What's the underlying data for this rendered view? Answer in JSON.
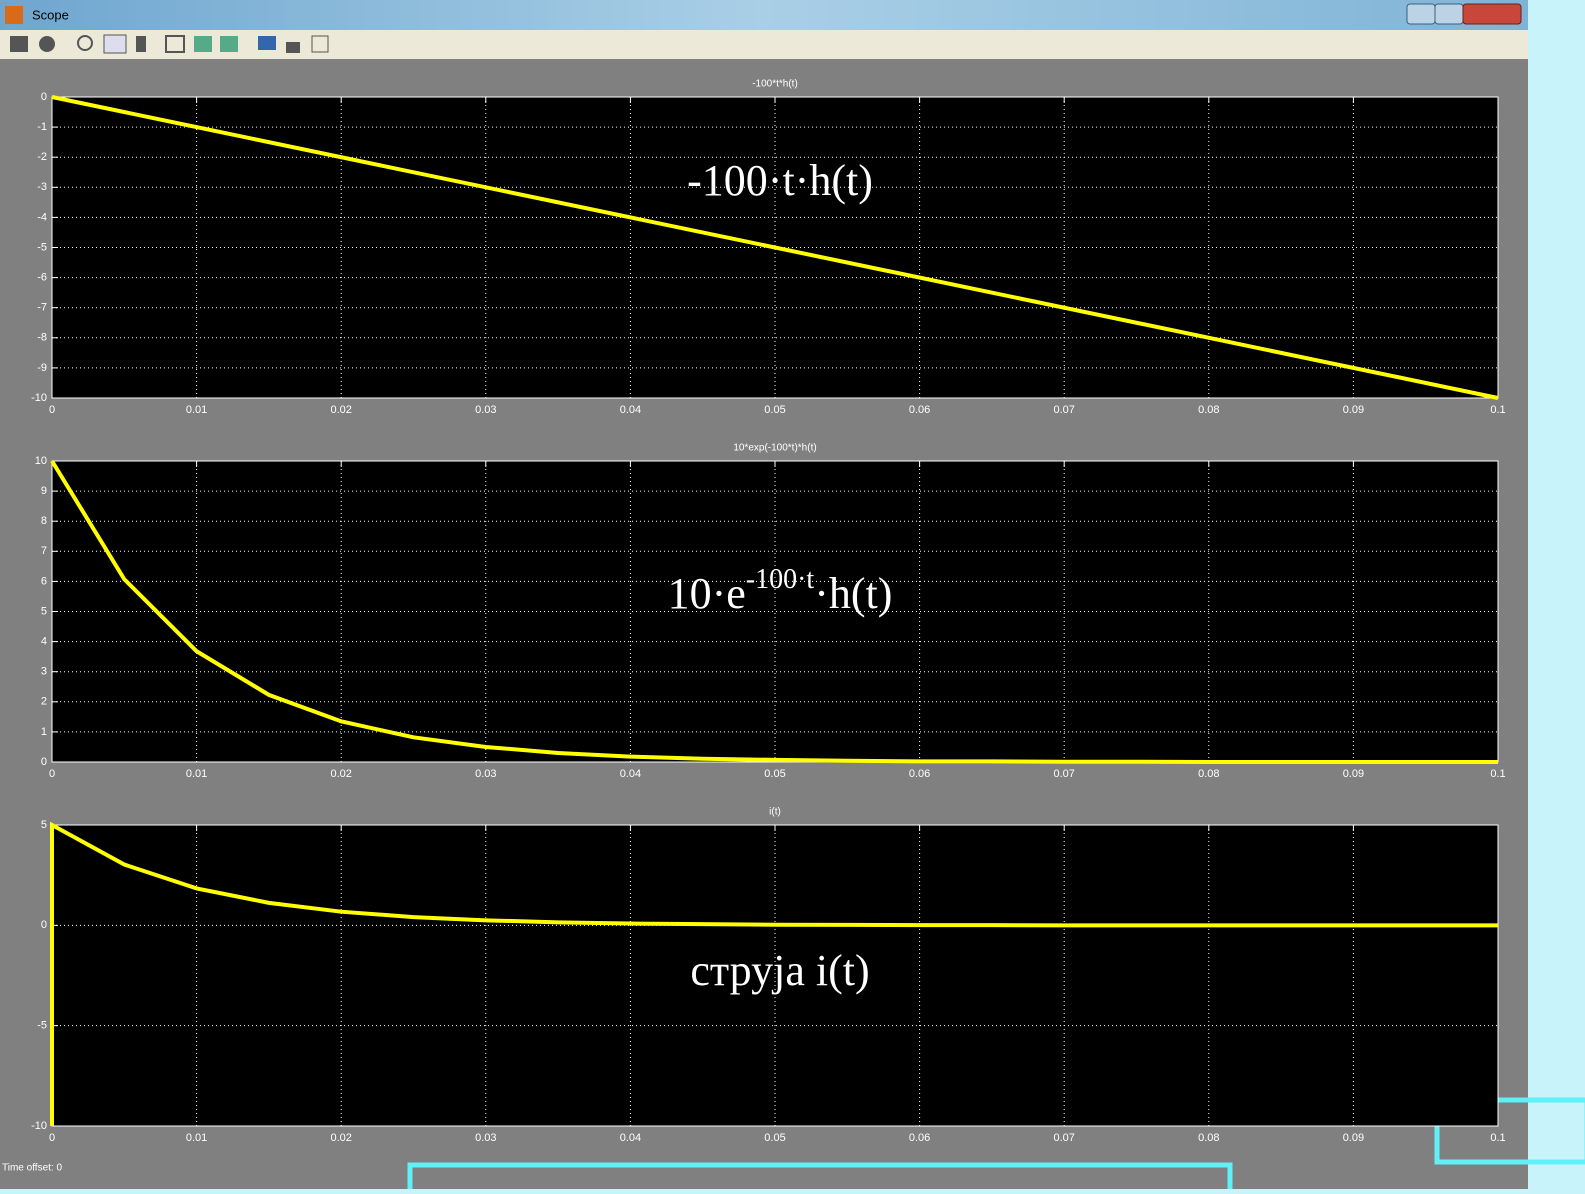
{
  "window": {
    "title": "Scope",
    "status": "Time offset:  0"
  },
  "chart_data": [
    {
      "type": "line",
      "title": "-100*t*h(t)",
      "annotation": [
        "-100·t·h(t)"
      ],
      "color": "#ffff00",
      "grid": true,
      "x": [
        0,
        0.1
      ],
      "values": [
        0,
        -10
      ],
      "xlim": [
        0,
        0.1
      ],
      "ylim": [
        -10,
        0
      ],
      "xticks": [
        0,
        0.01,
        0.02,
        0.03,
        0.04,
        0.05,
        0.06,
        0.07,
        0.08,
        0.09,
        0.1
      ],
      "yticks": [
        0,
        -1,
        -2,
        -3,
        -4,
        -5,
        -6,
        -7,
        -8,
        -9,
        -10
      ]
    },
    {
      "type": "line",
      "title": "10*exp(-100*t)*h(t)",
      "annotation": [
        "10·e",
        "-100·t",
        "·h(t)"
      ],
      "color": "#ffff00",
      "grid": true,
      "x": [
        0,
        0.005,
        0.01,
        0.015,
        0.02,
        0.025,
        0.03,
        0.035,
        0.04,
        0.045,
        0.05,
        0.055,
        0.06,
        0.065,
        0.07,
        0.075,
        0.08,
        0.085,
        0.09,
        0.095,
        0.1
      ],
      "values": [
        10,
        6.07,
        3.68,
        2.23,
        1.35,
        0.82,
        0.5,
        0.3,
        0.18,
        0.11,
        0.07,
        0.04,
        0.02,
        0.02,
        0.01,
        0.01,
        0,
        0,
        0,
        0,
        0
      ],
      "xlim": [
        0,
        0.1
      ],
      "ylim": [
        0,
        10
      ],
      "xticks": [
        0,
        0.01,
        0.02,
        0.03,
        0.04,
        0.05,
        0.06,
        0.07,
        0.08,
        0.09,
        0.1
      ],
      "yticks": [
        0,
        1,
        2,
        3,
        4,
        5,
        6,
        7,
        8,
        9,
        10
      ]
    },
    {
      "type": "line",
      "title": "i(t)",
      "annotation": [
        "струја i(t)"
      ],
      "color": "#ffff00",
      "grid": true,
      "x": [
        0,
        0,
        0.005,
        0.01,
        0.015,
        0.02,
        0.025,
        0.03,
        0.035,
        0.04,
        0.045,
        0.05,
        0.055,
        0.06,
        0.065,
        0.07,
        0.075,
        0.08,
        0.085,
        0.09,
        0.095,
        0.1
      ],
      "values": [
        -10,
        5,
        3.03,
        1.84,
        1.12,
        0.68,
        0.41,
        0.25,
        0.15,
        0.09,
        0.06,
        0.03,
        0.02,
        0.01,
        0.01,
        0,
        0,
        0,
        0,
        0,
        0,
        0
      ],
      "xlim": [
        0,
        0.1
      ],
      "ylim": [
        -10,
        5
      ],
      "xticks": [
        0,
        0.01,
        0.02,
        0.03,
        0.04,
        0.05,
        0.06,
        0.07,
        0.08,
        0.09,
        0.1
      ],
      "yticks": [
        -10,
        -5,
        0,
        5
      ]
    }
  ]
}
